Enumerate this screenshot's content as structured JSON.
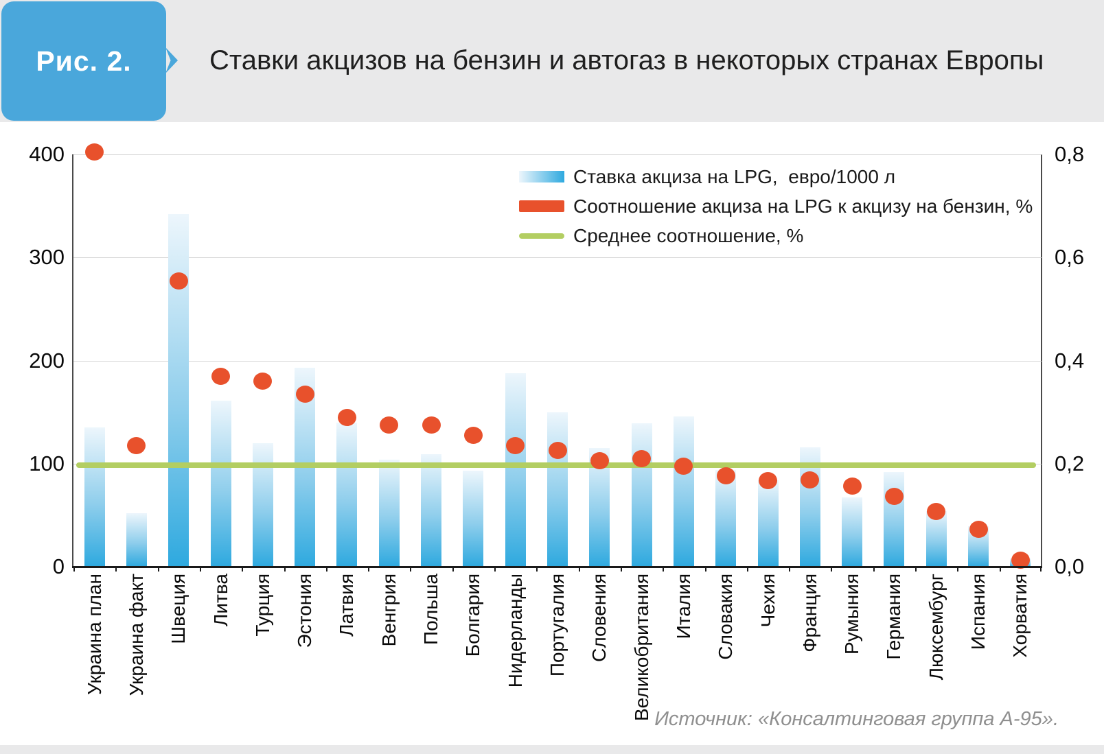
{
  "header": {
    "figure_label": "Рис. 2.",
    "title": "Ставки акцизов на бензин и автогаз в некоторых странах Европы"
  },
  "source_note": "Источник: «Консалтинговая группа А-95».",
  "chart_data": {
    "type": "bar",
    "subtype": "combo bar + scatter dots + average line, dual axis",
    "categories": [
      "Украина план",
      "Украина факт",
      "Швеция",
      "Литва",
      "Турция",
      "Эстония",
      "Латвия",
      "Венгрия",
      "Польша",
      "Болгария",
      "Нидерланды",
      "Португалия",
      "Словения",
      "Великобритания",
      "Италия",
      "Словакия",
      "Чехия",
      "Франция",
      "Румыния",
      "Германия",
      "Люксембург",
      "Испания",
      "Хорватия"
    ],
    "series": [
      {
        "name": "Ставка акциза на LPG,  евро/1000 л",
        "type": "bar",
        "axis": "left",
        "values": [
          135,
          52,
          342,
          161,
          120,
          193,
          140,
          104,
          109,
          93,
          188,
          150,
          115,
          139,
          146,
          94,
          84,
          116,
          67,
          92,
          54,
          39,
          8
        ]
      },
      {
        "name": "Соотношение акциза на LPG к акцизу на бензин, %",
        "type": "scatter",
        "axis": "right",
        "values": [
          0.805,
          0.235,
          0.555,
          0.37,
          0.36,
          0.335,
          0.29,
          0.275,
          0.275,
          0.255,
          0.235,
          0.225,
          0.205,
          0.21,
          0.195,
          0.177,
          0.167,
          0.168,
          0.157,
          0.136,
          0.107,
          0.073,
          0.013
        ]
      },
      {
        "name": "Среднее соотношение, %",
        "type": "line",
        "axis": "right",
        "value": 0.197
      }
    ],
    "left_axis": {
      "min": 0,
      "max": 400,
      "tick_values": [
        0,
        100,
        200,
        300,
        400
      ],
      "tick_labels": [
        "0",
        "100",
        "200",
        "300",
        "400"
      ]
    },
    "right_axis": {
      "min": 0,
      "max": 0.8,
      "tick_values": [
        0,
        0.2,
        0.4,
        0.6,
        0.8
      ],
      "tick_labels": [
        "0,0",
        "0,2",
        "0,4",
        "0,6",
        "0,8"
      ]
    },
    "grid": true,
    "legend_position": "inside-top-right",
    "colors": {
      "bar_gradient_top": "#EDF6FC",
      "bar_gradient_mid": "#8FCEEC",
      "bar_gradient_bottom": "#2EA9DF",
      "ratio_dot": "#E8512C",
      "avg_line": "#B3CE62",
      "badge_blue": "#4AA7DB",
      "header_bg": "#E9E9EA",
      "gridline": "#D8D8D8",
      "source_text": "#8F8F8F"
    }
  }
}
